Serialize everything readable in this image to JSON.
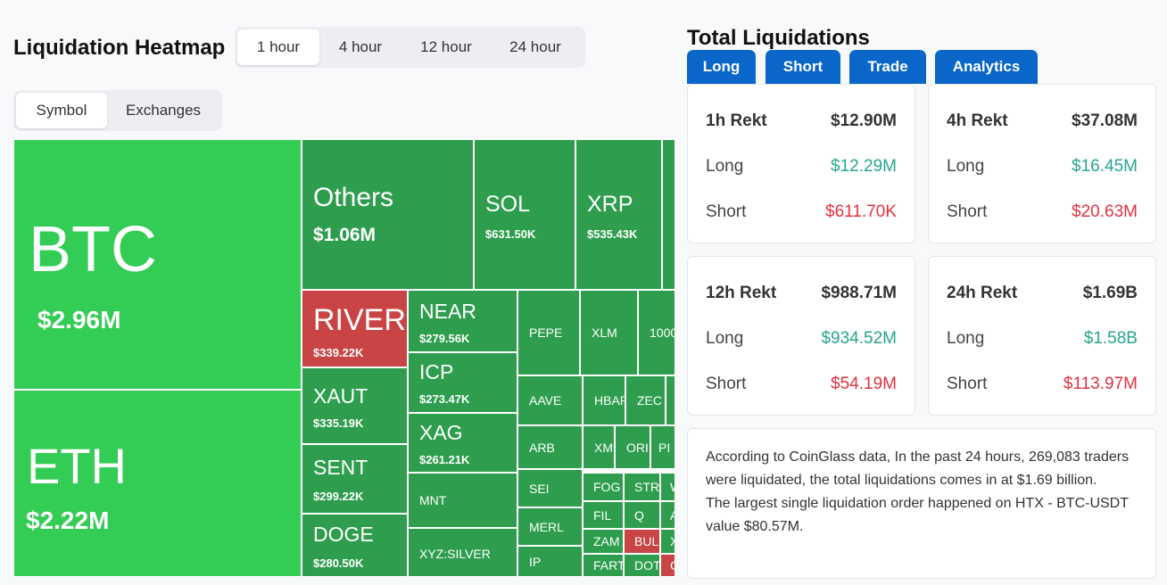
{
  "heatmap": {
    "title": "Liquidation Heatmap",
    "time_tabs": [
      "1 hour",
      "4 hour",
      "12 hour",
      "24 hour"
    ],
    "view_tabs": [
      "Symbol",
      "Exchanges"
    ],
    "tiles": [
      {
        "symbol": "BTC",
        "value": "$2.96M"
      },
      {
        "symbol": "ETH",
        "value": "$2.22M"
      },
      {
        "symbol": "Others",
        "value": "$1.06M"
      },
      {
        "symbol": "SOL",
        "value": "$631.50K"
      },
      {
        "symbol": "XRP",
        "value": "$535.43K"
      },
      {
        "symbol": "RIVER",
        "value": "$339.22K"
      },
      {
        "symbol": "NEAR",
        "value": "$279.56K"
      },
      {
        "symbol": "ICP",
        "value": "$273.47K"
      },
      {
        "symbol": "XAUT",
        "value": "$335.19K"
      },
      {
        "symbol": "XAG",
        "value": "$261.21K"
      },
      {
        "symbol": "SENT",
        "value": "$299.22K"
      },
      {
        "symbol": "DOGE",
        "value": "$280.50K"
      },
      {
        "symbol": "MNT"
      },
      {
        "symbol": "XYZ:SILVER"
      },
      {
        "symbol": "PEPE"
      },
      {
        "symbol": "XLM"
      },
      {
        "symbol": "1000"
      },
      {
        "symbol": "AAVE"
      },
      {
        "symbol": "HBAR"
      },
      {
        "symbol": "ZEC"
      },
      {
        "symbol": "ARB"
      },
      {
        "symbol": "XM"
      },
      {
        "symbol": "ORI"
      },
      {
        "symbol": "PI"
      },
      {
        "symbol": "SEI"
      },
      {
        "symbol": "MERL"
      },
      {
        "symbol": "IP"
      },
      {
        "symbol": "FOG"
      },
      {
        "symbol": "STR"
      },
      {
        "symbol": "W"
      },
      {
        "symbol": "FIL"
      },
      {
        "symbol": "Q"
      },
      {
        "symbol": "A"
      },
      {
        "symbol": "ZAM"
      },
      {
        "symbol": "BUL"
      },
      {
        "symbol": "X"
      },
      {
        "symbol": "FART"
      },
      {
        "symbol": "DOT"
      },
      {
        "symbol": "C"
      }
    ]
  },
  "totals": {
    "title": "Total Liquidations",
    "tabs": [
      "Long",
      "Short",
      "Trade",
      "Analytics"
    ],
    "cards": [
      {
        "title": "1h Rekt",
        "total": "$12.90M",
        "rows": [
          {
            "label": "Long",
            "value": "$12.29M"
          },
          {
            "label": "Short",
            "value": "$611.70K"
          }
        ]
      },
      {
        "title": "4h Rekt",
        "total": "$37.08M",
        "rows": [
          {
            "label": "Long",
            "value": "$16.45M"
          },
          {
            "label": "Short",
            "value": "$20.63M"
          }
        ]
      },
      {
        "title": "12h Rekt",
        "total": "$988.71M",
        "rows": [
          {
            "label": "Long",
            "value": "$934.52M"
          },
          {
            "label": "Short",
            "value": "$54.19M"
          }
        ]
      },
      {
        "title": "24h Rekt",
        "total": "$1.69B",
        "rows": [
          {
            "label": "Long",
            "value": "$1.58B"
          },
          {
            "label": "Short",
            "value": "$113.97M"
          }
        ]
      }
    ],
    "summary": [
      "According to CoinGlass data, In the past 24 hours, 269,083 traders were liquidated, the total liquidations comes in at $1.69 billion.",
      "The largest single liquidation order happened on HTX - BTC-USDT value $80.57M."
    ]
  }
}
